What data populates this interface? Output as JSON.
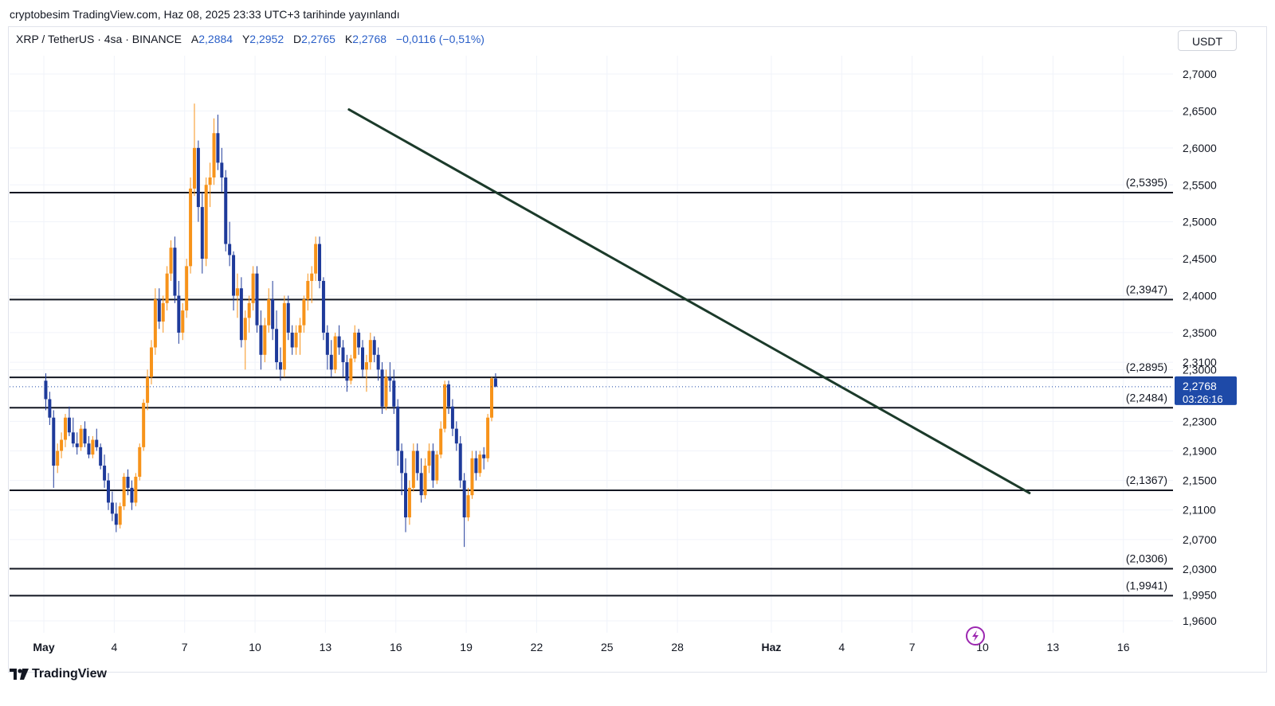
{
  "header": {
    "published_line": "cryptobesim TradingView.com, Haz 08, 2025 23:33 UTC+3 tarihinde yayınlandı"
  },
  "legend": {
    "symbol": "XRP / TetherUS · 4sa · BINANCE",
    "open_label": "A",
    "open": "2,2884",
    "high_label": "Y",
    "high": "2,2952",
    "low_label": "D",
    "low": "2,2765",
    "close_label": "K",
    "close": "2,2768",
    "change": "−0,0116 (−0,51%)"
  },
  "price_axis": {
    "currency": "USDT",
    "last_price": "2,2768",
    "countdown": "03:26:16"
  },
  "footer": {
    "brand": "TradingView"
  },
  "colors": {
    "up": "#f7931a",
    "down": "#1e3a9a",
    "trendline": "#1b3a2a",
    "level_line": "#131722",
    "price_tag": "#1e4aa8"
  },
  "icons": [
    "lightning-icon",
    "tradingview-logo-icon"
  ],
  "chart_data": {
    "type": "candlestick",
    "yaxis_ticks": [
      "2,7000",
      "2,6500",
      "2,6000",
      "2,5500",
      "2,5000",
      "2,4500",
      "2,4000",
      "2,3500",
      "2,3100",
      "2,3000",
      "2,2300",
      "2,1900",
      "2,1500",
      "2,1100",
      "2,0700",
      "2,0300",
      "1,9950",
      "1,9600"
    ],
    "xaxis_ticks": [
      {
        "label": "May",
        "bold": true
      },
      {
        "label": "4"
      },
      {
        "label": "7"
      },
      {
        "label": "10"
      },
      {
        "label": "13"
      },
      {
        "label": "16"
      },
      {
        "label": "19"
      },
      {
        "label": "22"
      },
      {
        "label": "25"
      },
      {
        "label": "28"
      },
      {
        "label": "Haz",
        "bold": true
      },
      {
        "label": "4"
      },
      {
        "label": "7"
      },
      {
        "label": "10"
      },
      {
        "label": "13"
      },
      {
        "label": "16"
      }
    ],
    "levels": [
      {
        "value": 2.5395,
        "label": "(2,5395)"
      },
      {
        "value": 2.3947,
        "label": "(2,3947)"
      },
      {
        "value": 2.2895,
        "label": "(2,2895)"
      },
      {
        "value": 2.2484,
        "label": "(2,2484)"
      },
      {
        "value": 2.1367,
        "label": "(2,1367)"
      },
      {
        "value": 2.0306,
        "label": "(2,0306)"
      },
      {
        "value": 1.9941,
        "label": "(1,9941)"
      }
    ],
    "trendline": {
      "start": {
        "date": "2025-05-14",
        "value": 2.652
      },
      "end": {
        "date": "2025-06-12",
        "value": 2.133
      }
    },
    "current_price": 2.2768,
    "ohlc_4h": [
      [
        2.285,
        2.295,
        2.245,
        2.26
      ],
      [
        2.26,
        2.27,
        2.225,
        2.235
      ],
      [
        2.235,
        2.245,
        2.14,
        2.17
      ],
      [
        2.17,
        2.2,
        2.16,
        2.19
      ],
      [
        2.19,
        2.215,
        2.18,
        2.205
      ],
      [
        2.205,
        2.24,
        2.195,
        2.235
      ],
      [
        2.235,
        2.25,
        2.21,
        2.215
      ],
      [
        2.215,
        2.235,
        2.195,
        2.2
      ],
      [
        2.2,
        2.215,
        2.185,
        2.195
      ],
      [
        2.195,
        2.225,
        2.19,
        2.22
      ],
      [
        2.22,
        2.23,
        2.195,
        2.2
      ],
      [
        2.2,
        2.21,
        2.18,
        2.185
      ],
      [
        2.185,
        2.21,
        2.18,
        2.205
      ],
      [
        2.205,
        2.22,
        2.19,
        2.195
      ],
      [
        2.195,
        2.2,
        2.165,
        2.17
      ],
      [
        2.17,
        2.185,
        2.14,
        2.15
      ],
      [
        2.15,
        2.16,
        2.11,
        2.12
      ],
      [
        2.12,
        2.135,
        2.095,
        2.105
      ],
      [
        2.105,
        2.12,
        2.08,
        2.09
      ],
      [
        2.09,
        2.12,
        2.085,
        2.115
      ],
      [
        2.115,
        2.16,
        2.11,
        2.155
      ],
      [
        2.155,
        2.165,
        2.13,
        2.14
      ],
      [
        2.14,
        2.15,
        2.11,
        2.12
      ],
      [
        2.12,
        2.16,
        2.115,
        2.155
      ],
      [
        2.155,
        2.2,
        2.15,
        2.195
      ],
      [
        2.195,
        2.26,
        2.19,
        2.255
      ],
      [
        2.255,
        2.3,
        2.245,
        2.29
      ],
      [
        2.29,
        2.34,
        2.28,
        2.33
      ],
      [
        2.33,
        2.41,
        2.32,
        2.395
      ],
      [
        2.395,
        2.41,
        2.355,
        2.365
      ],
      [
        2.365,
        2.4,
        2.35,
        2.39
      ],
      [
        2.39,
        2.44,
        2.38,
        2.43
      ],
      [
        2.43,
        2.475,
        2.42,
        2.465
      ],
      [
        2.465,
        2.48,
        2.39,
        2.4
      ],
      [
        2.4,
        2.42,
        2.335,
        2.35
      ],
      [
        2.35,
        2.39,
        2.34,
        2.38
      ],
      [
        2.38,
        2.45,
        2.37,
        2.44
      ],
      [
        2.44,
        2.56,
        2.43,
        2.545
      ],
      [
        2.545,
        2.66,
        2.535,
        2.6
      ],
      [
        2.6,
        2.61,
        2.5,
        2.52
      ],
      [
        2.52,
        2.54,
        2.43,
        2.45
      ],
      [
        2.45,
        2.56,
        2.44,
        2.55
      ],
      [
        2.55,
        2.58,
        2.52,
        2.56
      ],
      [
        2.56,
        2.64,
        2.55,
        2.62
      ],
      [
        2.62,
        2.645,
        2.57,
        2.58
      ],
      [
        2.58,
        2.6,
        2.54,
        2.56
      ],
      [
        2.56,
        2.57,
        2.46,
        2.47
      ],
      [
        2.47,
        2.5,
        2.44,
        2.455
      ],
      [
        2.455,
        2.46,
        2.38,
        2.4
      ],
      [
        2.4,
        2.43,
        2.37,
        2.41
      ],
      [
        2.41,
        2.425,
        2.33,
        2.34
      ],
      [
        2.34,
        2.38,
        2.3,
        2.37
      ],
      [
        2.37,
        2.4,
        2.35,
        2.39
      ],
      [
        2.39,
        2.44,
        2.38,
        2.43
      ],
      [
        2.43,
        2.44,
        2.35,
        2.36
      ],
      [
        2.36,
        2.38,
        2.3,
        2.32
      ],
      [
        2.32,
        2.37,
        2.31,
        2.36
      ],
      [
        2.36,
        2.41,
        2.35,
        2.395
      ],
      [
        2.395,
        2.42,
        2.34,
        2.355
      ],
      [
        2.355,
        2.38,
        2.3,
        2.31
      ],
      [
        2.31,
        2.33,
        2.285,
        2.3
      ],
      [
        2.3,
        2.4,
        2.29,
        2.39
      ],
      [
        2.39,
        2.4,
        2.34,
        2.35
      ],
      [
        2.35,
        2.36,
        2.32,
        2.33
      ],
      [
        2.33,
        2.36,
        2.32,
        2.35
      ],
      [
        2.35,
        2.37,
        2.32,
        2.36
      ],
      [
        2.36,
        2.4,
        2.35,
        2.395
      ],
      [
        2.395,
        2.43,
        2.38,
        2.42
      ],
      [
        2.42,
        2.44,
        2.39,
        2.43
      ],
      [
        2.43,
        2.48,
        2.42,
        2.47
      ],
      [
        2.47,
        2.48,
        2.41,
        2.42
      ],
      [
        2.42,
        2.425,
        2.34,
        2.35
      ],
      [
        2.35,
        2.36,
        2.3,
        2.32
      ],
      [
        2.32,
        2.34,
        2.29,
        2.3
      ],
      [
        2.3,
        2.35,
        2.295,
        2.345
      ],
      [
        2.345,
        2.36,
        2.32,
        2.33
      ],
      [
        2.33,
        2.34,
        2.29,
        2.31
      ],
      [
        2.31,
        2.32,
        2.27,
        2.285
      ],
      [
        2.285,
        2.32,
        2.28,
        2.315
      ],
      [
        2.315,
        2.36,
        2.31,
        2.35
      ],
      [
        2.35,
        2.355,
        2.32,
        2.33
      ],
      [
        2.33,
        2.34,
        2.29,
        2.3
      ],
      [
        2.3,
        2.32,
        2.27,
        2.31
      ],
      [
        2.31,
        2.35,
        2.3,
        2.34
      ],
      [
        2.34,
        2.345,
        2.31,
        2.32
      ],
      [
        2.32,
        2.33,
        2.285,
        2.3
      ],
      [
        2.3,
        2.31,
        2.24,
        2.25
      ],
      [
        2.25,
        2.3,
        2.245,
        2.29
      ],
      [
        2.29,
        2.31,
        2.27,
        2.285
      ],
      [
        2.285,
        2.3,
        2.24,
        2.25
      ],
      [
        2.25,
        2.26,
        2.17,
        2.19
      ],
      [
        2.19,
        2.2,
        2.13,
        2.16
      ],
      [
        2.16,
        2.18,
        2.08,
        2.1
      ],
      [
        2.1,
        2.15,
        2.09,
        2.14
      ],
      [
        2.14,
        2.2,
        2.135,
        2.19
      ],
      [
        2.19,
        2.2,
        2.15,
        2.16
      ],
      [
        2.16,
        2.18,
        2.12,
        2.13
      ],
      [
        2.13,
        2.18,
        2.125,
        2.17
      ],
      [
        2.17,
        2.2,
        2.16,
        2.19
      ],
      [
        2.19,
        2.2,
        2.14,
        2.15
      ],
      [
        2.15,
        2.19,
        2.145,
        2.185
      ],
      [
        2.185,
        2.23,
        2.18,
        2.22
      ],
      [
        2.22,
        2.285,
        2.215,
        2.28
      ],
      [
        2.28,
        2.285,
        2.24,
        2.25
      ],
      [
        2.25,
        2.26,
        2.21,
        2.22
      ],
      [
        2.22,
        2.23,
        2.19,
        2.2
      ],
      [
        2.2,
        2.21,
        2.14,
        2.15
      ],
      [
        2.15,
        2.16,
        2.06,
        2.1
      ],
      [
        2.1,
        2.14,
        2.095,
        2.13
      ],
      [
        2.13,
        2.19,
        2.125,
        2.18
      ],
      [
        2.18,
        2.19,
        2.15,
        2.16
      ],
      [
        2.16,
        2.19,
        2.155,
        2.185
      ],
      [
        2.185,
        2.195,
        2.165,
        2.18
      ],
      [
        2.18,
        2.24,
        2.175,
        2.235
      ],
      [
        2.235,
        2.29,
        2.23,
        2.288
      ],
      [
        2.288,
        2.295,
        2.276,
        2.277
      ]
    ]
  }
}
